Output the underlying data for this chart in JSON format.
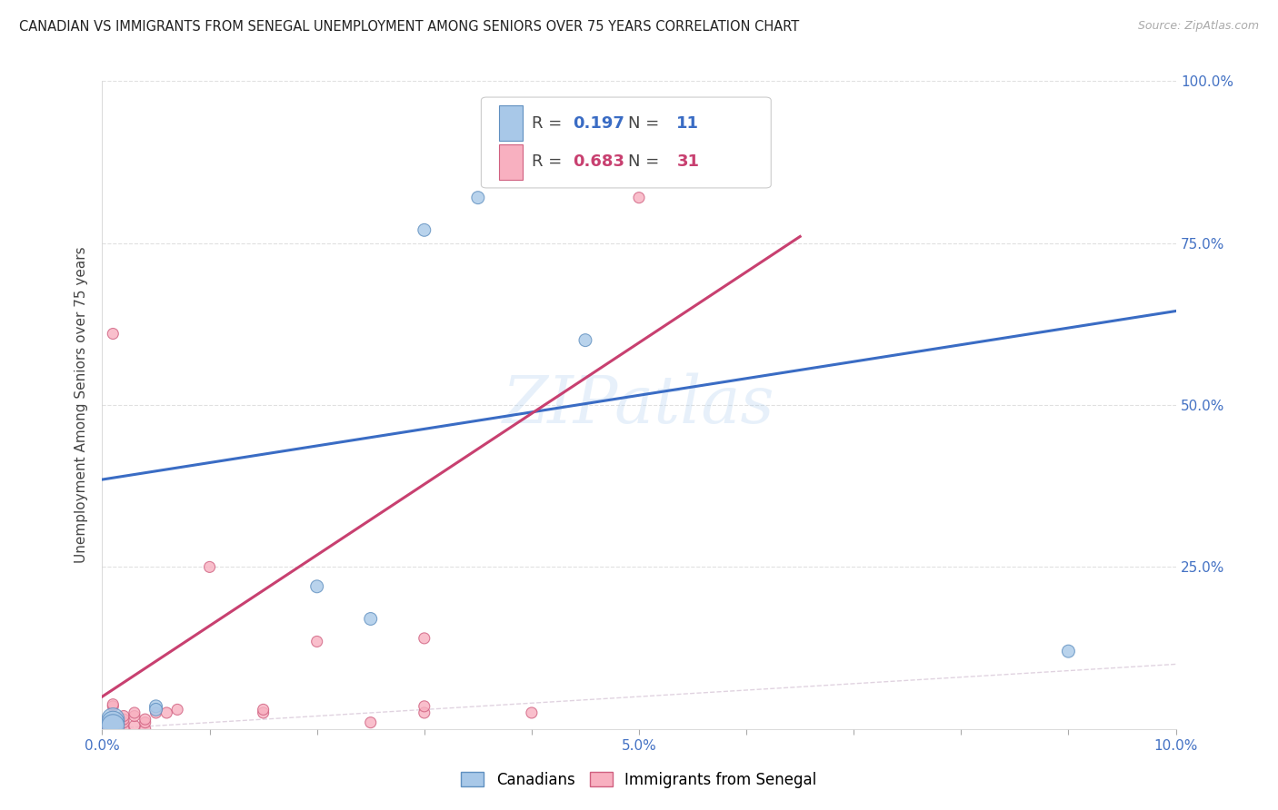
{
  "title": "CANADIAN VS IMMIGRANTS FROM SENEGAL UNEMPLOYMENT AMONG SENIORS OVER 75 YEARS CORRELATION CHART",
  "source": "Source: ZipAtlas.com",
  "ylabel": "Unemployment Among Seniors over 75 years",
  "xlim": [
    0.0,
    0.1
  ],
  "ylim": [
    0.0,
    1.0
  ],
  "canadian_points": [
    [
      0.001,
      0.015
    ],
    [
      0.001,
      0.01
    ],
    [
      0.001,
      0.005
    ],
    [
      0.005,
      0.035
    ],
    [
      0.005,
      0.03
    ],
    [
      0.02,
      0.22
    ],
    [
      0.025,
      0.17
    ],
    [
      0.03,
      0.77
    ],
    [
      0.035,
      0.82
    ],
    [
      0.045,
      0.6
    ],
    [
      0.09,
      0.12
    ]
  ],
  "senegal_points": [
    [
      0.0,
      0.0
    ],
    [
      0.0,
      0.002
    ],
    [
      0.001,
      0.0
    ],
    [
      0.001,
      0.002
    ],
    [
      0.001,
      0.015
    ],
    [
      0.001,
      0.035
    ],
    [
      0.001,
      0.038
    ],
    [
      0.002,
      0.0
    ],
    [
      0.002,
      0.01
    ],
    [
      0.002,
      0.015
    ],
    [
      0.002,
      0.02
    ],
    [
      0.003,
      0.005
    ],
    [
      0.003,
      0.02
    ],
    [
      0.003,
      0.025
    ],
    [
      0.004,
      0.0
    ],
    [
      0.004,
      0.01
    ],
    [
      0.004,
      0.015
    ],
    [
      0.005,
      0.025
    ],
    [
      0.006,
      0.025
    ],
    [
      0.007,
      0.03
    ],
    [
      0.01,
      0.25
    ],
    [
      0.015,
      0.025
    ],
    [
      0.015,
      0.03
    ],
    [
      0.02,
      0.135
    ],
    [
      0.025,
      0.01
    ],
    [
      0.03,
      0.025
    ],
    [
      0.03,
      0.035
    ],
    [
      0.03,
      0.14
    ],
    [
      0.04,
      0.025
    ],
    [
      0.05,
      0.82
    ],
    [
      0.001,
      0.61
    ]
  ],
  "canadian_color": "#A8C8E8",
  "canadian_edge_color": "#6090C0",
  "senegal_color": "#F8B0C0",
  "senegal_edge_color": "#D06080",
  "canadian_line_color": "#3A6CC4",
  "senegal_line_color": "#C84070",
  "diagonal_color": "#C8B0C8",
  "canadian_line_x0": 0.0,
  "canadian_line_y0": 0.385,
  "canadian_line_x1": 0.1,
  "canadian_line_y1": 0.645,
  "senegal_line_x0": 0.0,
  "senegal_line_y0": 0.05,
  "senegal_line_x1": 0.065,
  "senegal_line_y1": 0.76,
  "R_canadian": 0.197,
  "N_canadian": 11,
  "R_senegal": 0.683,
  "N_senegal": 31,
  "watermark": "ZIPatlas",
  "background_color": "#FFFFFF",
  "grid_color": "#DDDDDD"
}
